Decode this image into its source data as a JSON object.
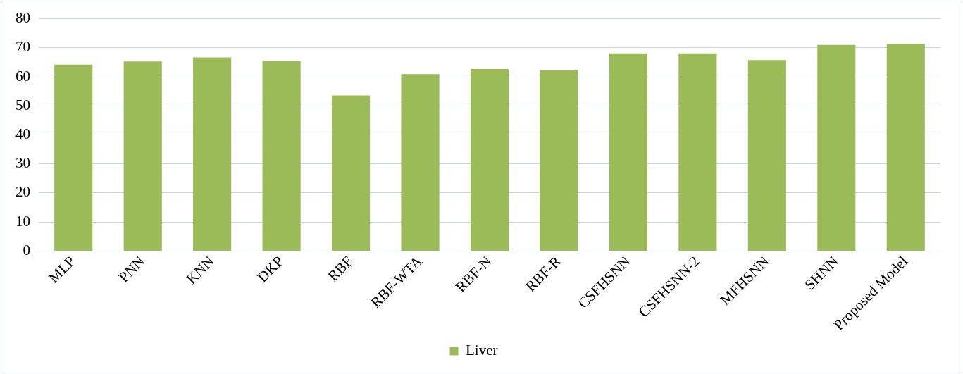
{
  "chart_data": {
    "type": "bar",
    "categories": [
      "MLP",
      "PNN",
      "KNN",
      "DKP",
      "RBF",
      "RBF-WTA",
      "RBF-N",
      "RBF-R",
      "CSFHSNN",
      "CSFHSNN-2",
      "MFHSNN",
      "SHNN",
      "Proposed Model"
    ],
    "series": [
      {
        "name": "Liver",
        "color": "#9bbb59",
        "values": [
          64.2,
          65.3,
          66.7,
          65.4,
          53.6,
          60.9,
          62.7,
          62.2,
          68.1,
          68.1,
          65.8,
          71.0,
          71.3
        ]
      }
    ],
    "ylim": [
      0,
      80
    ],
    "yticks": [
      0,
      10,
      20,
      30,
      40,
      50,
      60,
      70,
      80
    ],
    "grid": "y",
    "legend": "bottom"
  }
}
